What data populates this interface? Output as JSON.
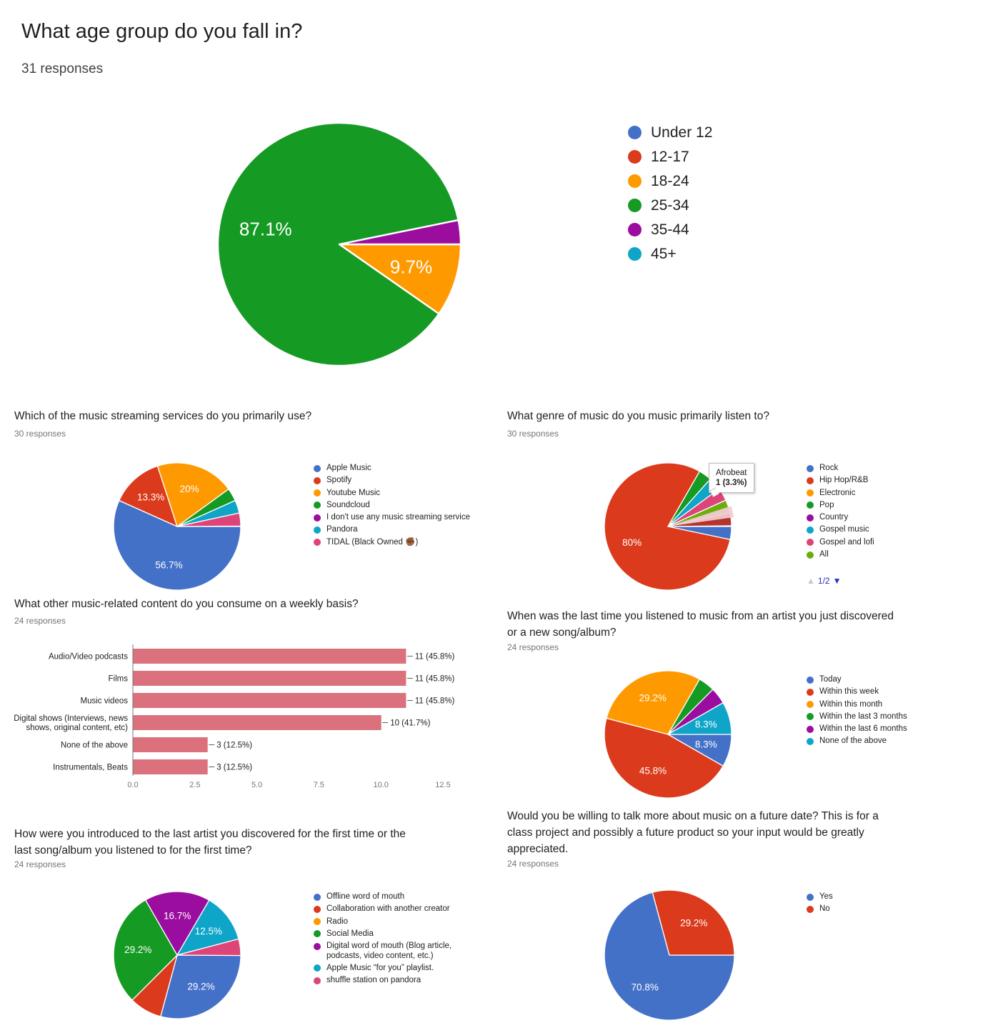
{
  "chart_data": [
    {
      "type": "pie",
      "title": "What age group do you fall in?",
      "responses": "31 responses",
      "legend": [
        {
          "label": "Under 12",
          "color": "#4471C8"
        },
        {
          "label": "12-17",
          "color": "#DB3B1C"
        },
        {
          "label": "18-24",
          "color": "#FF9900"
        },
        {
          "label": "25-34",
          "color": "#159A24"
        },
        {
          "label": "35-44",
          "color": "#9B0D9E"
        },
        {
          "label": "45+",
          "color": "#0FA5C8"
        }
      ],
      "slices": [
        {
          "label": "Under 12",
          "pct": 0,
          "color": "#4471C8"
        },
        {
          "label": "12-17",
          "pct": 0,
          "color": "#DB3B1C"
        },
        {
          "label": "18-24",
          "pct": 9.7,
          "color": "#FF9900",
          "show": "9.7%"
        },
        {
          "label": "25-34",
          "pct": 87.1,
          "color": "#159A24",
          "show": "87.1%"
        },
        {
          "label": "35-44",
          "pct": 3.2,
          "color": "#9B0D9E"
        },
        {
          "label": "45+",
          "pct": 0,
          "color": "#0FA5C8"
        }
      ]
    },
    {
      "type": "pie",
      "title": "Which of the music streaming services do you primarily use?",
      "responses": "30 responses",
      "legend": [
        {
          "label": "Apple Music",
          "color": "#4471C8"
        },
        {
          "label": "Spotify",
          "color": "#DB3B1C"
        },
        {
          "label": "Youtube Music",
          "color": "#FF9900"
        },
        {
          "label": "Soundcloud",
          "color": "#159A24"
        },
        {
          "label": "I don't use any music streaming service",
          "color": "#9B0D9E"
        },
        {
          "label": "Pandora",
          "color": "#0FA5C8"
        },
        {
          "label": "TIDAL (Black Owned ✊🏾)",
          "color": "#DD4477"
        }
      ],
      "slices": [
        {
          "label": "Apple Music",
          "pct": 56.7,
          "color": "#4471C8",
          "show": "56.7%"
        },
        {
          "label": "Spotify",
          "pct": 13.3,
          "color": "#DB3B1C",
          "show": "13.3%"
        },
        {
          "label": "Youtube Music",
          "pct": 20,
          "color": "#FF9900",
          "show": "20%"
        },
        {
          "label": "Soundcloud",
          "pct": 3.3,
          "color": "#159A24"
        },
        {
          "label": "I don't use any music streaming service",
          "pct": 0,
          "color": "#9B0D9E"
        },
        {
          "label": "Pandora",
          "pct": 3.3,
          "color": "#0FA5C8"
        },
        {
          "label": "TIDAL (Black Owned ✊🏾)",
          "pct": 3.3,
          "color": "#DD4477"
        }
      ]
    },
    {
      "type": "pie",
      "title": "What genre of music do you music primarily listen to?",
      "responses": "30 responses",
      "legend": [
        {
          "label": "Rock",
          "color": "#4471C8"
        },
        {
          "label": "Hip Hop/R&B",
          "color": "#DB3B1C"
        },
        {
          "label": "Electronic",
          "color": "#FF9900"
        },
        {
          "label": "Pop",
          "color": "#159A24"
        },
        {
          "label": "Country",
          "color": "#9B0D9E"
        },
        {
          "label": "Gospel music",
          "color": "#0FA5C8"
        },
        {
          "label": "Gospel and lofi",
          "color": "#DD4477"
        },
        {
          "label": "All",
          "color": "#6CAD0C"
        }
      ],
      "legend_pagination": {
        "current": "1/2",
        "prev": "▲",
        "next": "▼"
      },
      "slices": [
        {
          "label": "Rock",
          "pct": 3.3,
          "color": "#4471C8"
        },
        {
          "label": "Hip Hop/R&B",
          "pct": 80,
          "color": "#DB3B1C",
          "show": "80%"
        },
        {
          "label": "Electronic",
          "pct": 0,
          "color": "#FF9900"
        },
        {
          "label": "Pop",
          "pct": 3.3,
          "color": "#159A24"
        },
        {
          "label": "Country",
          "pct": 0,
          "color": "#9B0D9E"
        },
        {
          "label": "Gospel music",
          "pct": 3.3,
          "color": "#0FA5C8"
        },
        {
          "label": "Gospel and lofi",
          "pct": 3.3,
          "color": "#DD4477"
        },
        {
          "label": "All",
          "pct": 3.3,
          "color": "#6CAD0C"
        },
        {
          "label": "Afrobeat",
          "pct": 3.3,
          "color": "#B5342C"
        }
      ],
      "highlight": {
        "from": 72,
        "to": 82,
        "color": "#F3CDD2"
      },
      "tooltip": {
        "line1": "Afrobeat",
        "line2": "1 (3.3%)"
      }
    },
    {
      "type": "bar",
      "title": "What other music-related content do you consume on a weekly basis?",
      "responses": "24 responses",
      "bar_color": "#DB717C",
      "xmax": 12.5,
      "xticks": [
        "0.0",
        "2.5",
        "5.0",
        "7.5",
        "10.0",
        "12.5"
      ],
      "categories": [
        {
          "label": "Audio/Video podcasts",
          "value": 11,
          "text": "11 (45.8%)"
        },
        {
          "label": "Films",
          "value": 11,
          "text": "11 (45.8%)"
        },
        {
          "label": "Music videos",
          "value": 11,
          "text": "11 (45.8%)"
        },
        {
          "label": "Digital shows (Interviews, news\nshows, original content, etc)",
          "value": 10,
          "text": "10 (41.7%)"
        },
        {
          "label": "None of the above",
          "value": 3,
          "text": "3 (12.5%)"
        },
        {
          "label": "Instrumentals, Beats",
          "value": 3,
          "text": "3 (12.5%)"
        }
      ]
    },
    {
      "type": "pie",
      "title": "When was the last time you listened to music from an artist you just discovered\nor a new song/album?",
      "responses": "24 responses",
      "legend": [
        {
          "label": "Today",
          "color": "#4471C8"
        },
        {
          "label": "Within this week",
          "color": "#DB3B1C"
        },
        {
          "label": "Within this month",
          "color": "#FF9900"
        },
        {
          "label": "Within the last 3 months",
          "color": "#159A24"
        },
        {
          "label": "Within the last 6 months",
          "color": "#9B0D9E"
        },
        {
          "label": "None of the above",
          "color": "#0FA5C8"
        }
      ],
      "slices": [
        {
          "label": "Today",
          "pct": 8.3,
          "color": "#4471C8",
          "show": "8.3%"
        },
        {
          "label": "Within this week",
          "pct": 45.8,
          "color": "#DB3B1C",
          "show": "45.8%"
        },
        {
          "label": "Within this month",
          "pct": 29.2,
          "color": "#FF9900",
          "show": "29.2%"
        },
        {
          "label": "Within the last 3 months",
          "pct": 4.2,
          "color": "#159A24"
        },
        {
          "label": "Within the last 6 months",
          "pct": 4.2,
          "color": "#9B0D9E"
        },
        {
          "label": "None of the above",
          "pct": 8.3,
          "color": "#0FA5C8",
          "show": "8.3%"
        }
      ]
    },
    {
      "type": "pie",
      "title": "How were you introduced to the last artist you discovered for the first time or the\nlast song/album you listened to for the first time?",
      "responses": "24 responses",
      "legend": [
        {
          "label": "Offline word of mouth",
          "color": "#4471C8"
        },
        {
          "label": "Collaboration with another creator",
          "color": "#DB3B1C"
        },
        {
          "label": "Radio",
          "color": "#FF9900"
        },
        {
          "label": "Social Media",
          "color": "#159A24"
        },
        {
          "label": "Digital word of mouth (Blog article,\npodcasts, video content, etc.)",
          "color": "#9B0D9E"
        },
        {
          "label": "Apple Music “for you” playlist.",
          "color": "#0FA5C8"
        },
        {
          "label": "shuffle station on pandora",
          "color": "#DD4477"
        }
      ],
      "slices": [
        {
          "label": "Offline word of mouth",
          "pct": 29.2,
          "color": "#4471C8",
          "show": "29.2%"
        },
        {
          "label": "Collaboration with another creator",
          "pct": 8.3,
          "color": "#DB3B1C"
        },
        {
          "label": "Radio",
          "pct": 0,
          "color": "#FF9900"
        },
        {
          "label": "Social Media",
          "pct": 29.2,
          "color": "#159A24",
          "show": "29.2%"
        },
        {
          "label": "Digital word of mouth (Blog article, podcasts, video content, etc.)",
          "pct": 16.7,
          "color": "#9B0D9E",
          "show": "16.7%"
        },
        {
          "label": "Apple Music “for you” playlist.",
          "pct": 12.5,
          "color": "#0FA5C8",
          "show": "12.5%"
        },
        {
          "label": "shuffle station on pandora",
          "pct": 4.2,
          "color": "#DD4477"
        }
      ]
    },
    {
      "type": "pie",
      "title": "Would you be willing to talk more about music on a future date? This is for a\nclass project and possibly a future product so your input would be greatly\nappreciated.",
      "responses": "24 responses",
      "legend": [
        {
          "label": "Yes",
          "color": "#4471C8"
        },
        {
          "label": "No",
          "color": "#DB3B1C"
        }
      ],
      "slices": [
        {
          "label": "Yes",
          "pct": 70.8,
          "color": "#4471C8",
          "show": "70.8%"
        },
        {
          "label": "No",
          "pct": 29.2,
          "color": "#DB3B1C",
          "show": "29.2%"
        }
      ]
    }
  ]
}
